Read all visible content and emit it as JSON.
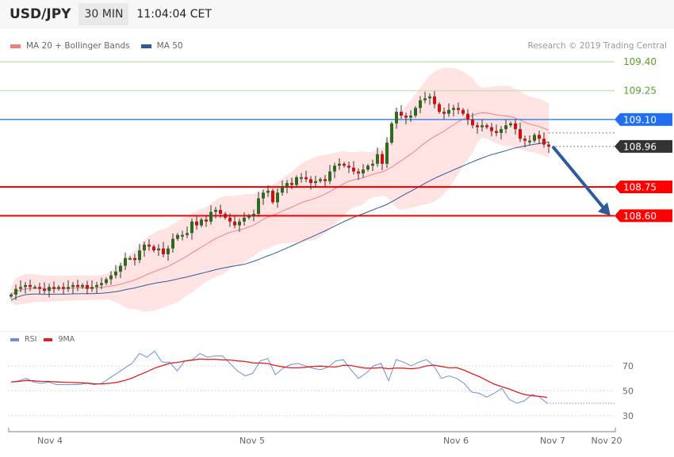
{
  "header": {
    "symbol": "USD/JPY",
    "timeframe": "30 MIN",
    "time": "11:04:04 CET"
  },
  "legend": {
    "items": [
      {
        "label": "MA 20 + Bollinger Bands",
        "color": "#f08080"
      },
      {
        "label": "MA 50",
        "color": "#2f5b9b"
      }
    ]
  },
  "copyright": "Research © 2019 Trading Central",
  "chart_data": [
    {
      "type": "candlestick",
      "title": "USD/JPY",
      "closes": [
        108.19,
        108.22,
        108.23,
        108.24,
        108.23,
        108.23,
        108.22,
        108.21,
        108.23,
        108.22,
        108.23,
        108.22,
        108.23,
        108.24,
        108.23,
        108.24,
        108.22,
        108.23,
        108.24,
        108.25,
        108.27,
        108.29,
        108.31,
        108.34,
        108.38,
        108.38,
        108.37,
        108.42,
        108.45,
        108.44,
        108.42,
        108.43,
        108.4,
        108.43,
        108.48,
        108.5,
        108.5,
        108.51,
        108.57,
        108.55,
        108.58,
        108.57,
        108.62,
        108.63,
        108.61,
        108.59,
        108.57,
        108.55,
        108.57,
        108.59,
        108.6,
        108.61,
        108.69,
        108.72,
        108.73,
        108.67,
        108.72,
        108.75,
        108.77,
        108.76,
        108.8,
        108.8,
        108.79,
        108.77,
        108.78,
        108.79,
        108.78,
        108.83,
        108.86,
        108.87,
        108.86,
        108.85,
        108.83,
        108.82,
        108.84,
        108.86,
        108.87,
        108.92,
        108.87,
        108.98,
        109.08,
        109.14,
        109.12,
        109.11,
        109.12,
        109.16,
        109.2,
        109.21,
        109.22,
        109.18,
        109.14,
        109.13,
        109.15,
        109.16,
        109.15,
        109.13,
        109.1,
        109.07,
        109.06,
        109.07,
        109.06,
        109.04,
        109.03,
        109.05,
        109.07,
        109.08,
        109.05,
        109.0,
        108.99,
        108.99,
        109.02,
        109.0,
        108.97,
        108.96
      ],
      "overlays": [
        "MA 20 + Bollinger Bands",
        "MA 50"
      ],
      "ylim": [
        108.07,
        109.45
      ],
      "levels": [
        {
          "value": 109.4,
          "label": "109.40",
          "kind": "resistance-minor",
          "color": "#5aa02c"
        },
        {
          "value": 109.25,
          "label": "109.25",
          "kind": "resistance-minor",
          "color": "#5aa02c"
        },
        {
          "value": 109.1,
          "label": "109.10",
          "kind": "pivot",
          "color": "#1f6ff0"
        },
        {
          "value": 108.96,
          "label": "108.96",
          "kind": "last-price",
          "color": "#333333"
        },
        {
          "value": 108.75,
          "label": "108.75",
          "kind": "support",
          "color": "#ff0000"
        },
        {
          "value": 108.6,
          "label": "108.60",
          "kind": "support",
          "color": "#ff0000"
        }
      ],
      "forecast_arrow": {
        "from": 108.96,
        "to": 108.6,
        "direction": "down",
        "color": "#2f5b9b"
      },
      "colors": {
        "up": "#2e6b1e",
        "down": "#d01010"
      }
    },
    {
      "type": "line",
      "legend": [
        {
          "name": "RSI",
          "color": "#6f8fdc"
        },
        {
          "name": "9MA",
          "color": "#e02020"
        }
      ],
      "rsi": [
        57,
        58,
        60,
        57,
        56,
        57,
        55,
        55,
        55,
        55,
        56,
        55,
        56,
        60,
        64,
        68,
        72,
        80,
        77,
        82,
        73,
        73,
        66,
        74,
        75,
        80,
        77,
        78,
        78,
        72,
        66,
        62,
        64,
        74,
        76,
        63,
        68,
        71,
        72,
        70,
        68,
        67,
        69,
        74,
        75,
        67,
        60,
        64,
        70,
        72,
        58,
        75,
        73,
        70,
        73,
        75,
        70,
        60,
        62,
        60,
        56,
        49,
        48,
        45,
        48,
        52,
        43,
        40,
        42,
        47,
        45,
        40
      ],
      "yticks": [
        70,
        50,
        30
      ],
      "ylim": [
        18,
        95
      ],
      "grid": "dotted-horizontal",
      "x_tick_labels": [
        "Nov 4",
        "Nov 5",
        "Nov 6",
        "Nov 7",
        "Nov 20"
      ]
    }
  ]
}
